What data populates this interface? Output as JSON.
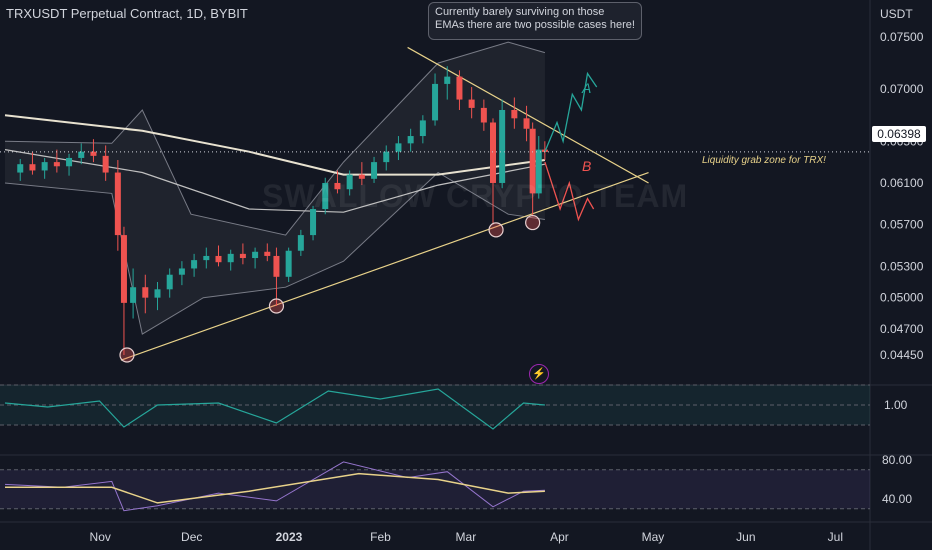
{
  "header": {
    "symbol_title": "TRXUSDT Perpetual Contract, 1D, BYBIT",
    "currency": "USDT",
    "last_price": "0.06398",
    "callout_text": "Currently barely surviving on those EMAs there are two possible cases here!",
    "watermark": "SWALLOW CRYPTO TEAM",
    "liquidity_label": "Liquidity grab zone for TRX!",
    "case_a": "A",
    "case_b": "B",
    "flash_icon": "lightning-icon"
  },
  "chart_data": [
    {
      "type": "candlestick",
      "title": "TRXUSDT Perpetual Contract, 1D, BYBIT",
      "x_ticks": [
        "Nov",
        "Dec",
        "2023",
        "Feb",
        "Mar",
        "Apr",
        "May",
        "Jun",
        "Jul"
      ],
      "y_ticks": [
        "0.07500",
        "0.07000",
        "0.06500",
        "0.06100",
        "0.05700",
        "0.05300",
        "0.05000",
        "0.04700",
        "0.04450"
      ],
      "ylim": [
        0.0425,
        0.077
      ],
      "last_price": 0.06398,
      "colors": {
        "up": "#26a69a",
        "down": "#ef5350",
        "ema_long": "#e8e2d0",
        "ema_mid": "#c0c0c0",
        "bollinger": "#787b86",
        "trendline": "#e8d28a"
      },
      "candles": [
        {
          "d": "2022-10-06",
          "o": 0.062,
          "h": 0.0633,
          "l": 0.0612,
          "c": 0.0628
        },
        {
          "d": "2022-10-10",
          "o": 0.0628,
          "h": 0.064,
          "l": 0.0618,
          "c": 0.0622
        },
        {
          "d": "2022-10-14",
          "o": 0.0622,
          "h": 0.0634,
          "l": 0.0614,
          "c": 0.063
        },
        {
          "d": "2022-10-18",
          "o": 0.063,
          "h": 0.0642,
          "l": 0.062,
          "c": 0.0626
        },
        {
          "d": "2022-10-22",
          "o": 0.0626,
          "h": 0.0638,
          "l": 0.0617,
          "c": 0.0634
        },
        {
          "d": "2022-10-26",
          "o": 0.0634,
          "h": 0.0648,
          "l": 0.0628,
          "c": 0.064
        },
        {
          "d": "2022-10-30",
          "o": 0.064,
          "h": 0.0652,
          "l": 0.063,
          "c": 0.0636
        },
        {
          "d": "2022-11-03",
          "o": 0.0636,
          "h": 0.0646,
          "l": 0.0612,
          "c": 0.062
        },
        {
          "d": "2022-11-07",
          "o": 0.062,
          "h": 0.0632,
          "l": 0.0545,
          "c": 0.056
        },
        {
          "d": "2022-11-09",
          "o": 0.056,
          "h": 0.0568,
          "l": 0.0445,
          "c": 0.0495
        },
        {
          "d": "2022-11-12",
          "o": 0.0495,
          "h": 0.0528,
          "l": 0.048,
          "c": 0.051
        },
        {
          "d": "2022-11-16",
          "o": 0.051,
          "h": 0.0522,
          "l": 0.0485,
          "c": 0.05
        },
        {
          "d": "2022-11-20",
          "o": 0.05,
          "h": 0.0515,
          "l": 0.0488,
          "c": 0.0508
        },
        {
          "d": "2022-11-24",
          "o": 0.0508,
          "h": 0.0528,
          "l": 0.05,
          "c": 0.0522
        },
        {
          "d": "2022-11-28",
          "o": 0.0522,
          "h": 0.0535,
          "l": 0.0512,
          "c": 0.0528
        },
        {
          "d": "2022-12-02",
          "o": 0.0528,
          "h": 0.0542,
          "l": 0.052,
          "c": 0.0536
        },
        {
          "d": "2022-12-06",
          "o": 0.0536,
          "h": 0.0548,
          "l": 0.0528,
          "c": 0.054
        },
        {
          "d": "2022-12-10",
          "o": 0.054,
          "h": 0.055,
          "l": 0.053,
          "c": 0.0534
        },
        {
          "d": "2022-12-14",
          "o": 0.0534,
          "h": 0.0546,
          "l": 0.0526,
          "c": 0.0542
        },
        {
          "d": "2022-12-18",
          "o": 0.0542,
          "h": 0.0552,
          "l": 0.0532,
          "c": 0.0538
        },
        {
          "d": "2022-12-22",
          "o": 0.0538,
          "h": 0.0548,
          "l": 0.0528,
          "c": 0.0544
        },
        {
          "d": "2022-12-26",
          "o": 0.0544,
          "h": 0.0552,
          "l": 0.0535,
          "c": 0.054
        },
        {
          "d": "2022-12-29",
          "o": 0.054,
          "h": 0.0548,
          "l": 0.0492,
          "c": 0.052
        },
        {
          "d": "2023-01-02",
          "o": 0.052,
          "h": 0.0548,
          "l": 0.0515,
          "c": 0.0545
        },
        {
          "d": "2023-01-06",
          "o": 0.0545,
          "h": 0.0565,
          "l": 0.054,
          "c": 0.056
        },
        {
          "d": "2023-01-10",
          "o": 0.056,
          "h": 0.0588,
          "l": 0.0555,
          "c": 0.0585
        },
        {
          "d": "2023-01-14",
          "o": 0.0585,
          "h": 0.0615,
          "l": 0.058,
          "c": 0.061
        },
        {
          "d": "2023-01-18",
          "o": 0.061,
          "h": 0.0622,
          "l": 0.06,
          "c": 0.0604
        },
        {
          "d": "2023-01-22",
          "o": 0.0604,
          "h": 0.0622,
          "l": 0.0598,
          "c": 0.0618
        },
        {
          "d": "2023-01-26",
          "o": 0.0618,
          "h": 0.063,
          "l": 0.0608,
          "c": 0.0614
        },
        {
          "d": "2023-01-30",
          "o": 0.0614,
          "h": 0.0635,
          "l": 0.061,
          "c": 0.063
        },
        {
          "d": "2023-02-03",
          "o": 0.063,
          "h": 0.0646,
          "l": 0.0622,
          "c": 0.064
        },
        {
          "d": "2023-02-07",
          "o": 0.064,
          "h": 0.0655,
          "l": 0.0632,
          "c": 0.0648
        },
        {
          "d": "2023-02-11",
          "o": 0.0648,
          "h": 0.0662,
          "l": 0.064,
          "c": 0.0655
        },
        {
          "d": "2023-02-15",
          "o": 0.0655,
          "h": 0.0675,
          "l": 0.0648,
          "c": 0.067
        },
        {
          "d": "2023-02-19",
          "o": 0.067,
          "h": 0.0715,
          "l": 0.0665,
          "c": 0.0705
        },
        {
          "d": "2023-02-23",
          "o": 0.0705,
          "h": 0.0722,
          "l": 0.069,
          "c": 0.0712
        },
        {
          "d": "2023-02-27",
          "o": 0.0712,
          "h": 0.0718,
          "l": 0.068,
          "c": 0.069
        },
        {
          "d": "2023-03-03",
          "o": 0.069,
          "h": 0.0702,
          "l": 0.0672,
          "c": 0.0682
        },
        {
          "d": "2023-03-07",
          "o": 0.0682,
          "h": 0.069,
          "l": 0.066,
          "c": 0.0668
        },
        {
          "d": "2023-03-10",
          "o": 0.0668,
          "h": 0.0672,
          "l": 0.057,
          "c": 0.061
        },
        {
          "d": "2023-03-13",
          "o": 0.061,
          "h": 0.069,
          "l": 0.0605,
          "c": 0.068
        },
        {
          "d": "2023-03-17",
          "o": 0.068,
          "h": 0.0692,
          "l": 0.0662,
          "c": 0.0672
        },
        {
          "d": "2023-03-21",
          "o": 0.0672,
          "h": 0.0684,
          "l": 0.065,
          "c": 0.0662
        },
        {
          "d": "2023-03-23",
          "o": 0.0662,
          "h": 0.0668,
          "l": 0.0578,
          "c": 0.06
        },
        {
          "d": "2023-03-25",
          "o": 0.06,
          "h": 0.0655,
          "l": 0.0595,
          "c": 0.0642
        },
        {
          "d": "2023-03-27",
          "o": 0.0642,
          "h": 0.065,
          "l": 0.0632,
          "c": 0.06398
        }
      ],
      "ema_long": [
        {
          "d": "2022-10-01",
          "v": 0.0675
        },
        {
          "d": "2022-11-15",
          "v": 0.066
        },
        {
          "d": "2022-12-20",
          "v": 0.064
        },
        {
          "d": "2023-01-20",
          "v": 0.0618
        },
        {
          "d": "2023-02-20",
          "v": 0.0618
        },
        {
          "d": "2023-03-27",
          "v": 0.0632
        }
      ],
      "ema_mid": [
        {
          "d": "2022-10-01",
          "v": 0.0642
        },
        {
          "d": "2022-11-15",
          "v": 0.062
        },
        {
          "d": "2022-12-20",
          "v": 0.0585
        },
        {
          "d": "2023-01-20",
          "v": 0.0582
        },
        {
          "d": "2023-02-20",
          "v": 0.0608
        },
        {
          "d": "2023-03-27",
          "v": 0.0628
        }
      ],
      "bollinger_upper": [
        {
          "d": "2022-10-01",
          "v": 0.065
        },
        {
          "d": "2022-11-05",
          "v": 0.0648
        },
        {
          "d": "2022-11-15",
          "v": 0.068
        },
        {
          "d": "2022-12-01",
          "v": 0.058
        },
        {
          "d": "2023-01-01",
          "v": 0.056
        },
        {
          "d": "2023-01-20",
          "v": 0.063
        },
        {
          "d": "2023-02-20",
          "v": 0.0725
        },
        {
          "d": "2023-03-15",
          "v": 0.0745
        },
        {
          "d": "2023-03-27",
          "v": 0.0735
        }
      ],
      "bollinger_lower": [
        {
          "d": "2022-10-01",
          "v": 0.061
        },
        {
          "d": "2022-11-05",
          "v": 0.06
        },
        {
          "d": "2022-11-15",
          "v": 0.0465
        },
        {
          "d": "2022-12-05",
          "v": 0.05
        },
        {
          "d": "2023-01-01",
          "v": 0.051
        },
        {
          "d": "2023-01-20",
          "v": 0.0535
        },
        {
          "d": "2023-02-20",
          "v": 0.062
        },
        {
          "d": "2023-03-15",
          "v": 0.058
        },
        {
          "d": "2023-03-27",
          "v": 0.0575
        }
      ],
      "trendlines": [
        {
          "from": {
            "d": "2022-11-08",
            "v": 0.044
          },
          "to": {
            "d": "2023-04-30",
            "v": 0.062
          }
        },
        {
          "from": {
            "d": "2023-02-10",
            "v": 0.074
          },
          "to": {
            "d": "2023-04-30",
            "v": 0.061
          }
        }
      ],
      "touch_points": [
        {
          "d": "2022-11-10",
          "v": 0.0445
        },
        {
          "d": "2022-12-29",
          "v": 0.0492
        },
        {
          "d": "2023-03-11",
          "v": 0.0565
        },
        {
          "d": "2023-03-23",
          "v": 0.0572
        }
      ],
      "scenario_a": [
        {
          "d": "2023-03-27",
          "v": 0.064
        },
        {
          "d": "2023-03-31",
          "v": 0.0668
        },
        {
          "d": "2023-04-02",
          "v": 0.065
        },
        {
          "d": "2023-04-05",
          "v": 0.0695
        },
        {
          "d": "2023-04-08",
          "v": 0.068
        },
        {
          "d": "2023-04-10",
          "v": 0.0715
        },
        {
          "d": "2023-04-13",
          "v": 0.0702
        }
      ],
      "scenario_b": [
        {
          "d": "2023-03-27",
          "v": 0.063
        },
        {
          "d": "2023-04-01",
          "v": 0.0585
        },
        {
          "d": "2023-04-04",
          "v": 0.061
        },
        {
          "d": "2023-04-07",
          "v": 0.0575
        },
        {
          "d": "2023-04-10",
          "v": 0.0595
        },
        {
          "d": "2023-04-12",
          "v": 0.0585
        }
      ]
    },
    {
      "type": "line",
      "title": "",
      "y_ticks": [
        "1.00"
      ],
      "ylim": [
        0.0,
        2.0
      ],
      "bands": [
        0.5,
        1.5
      ],
      "color": "#26a69a",
      "points": [
        {
          "d": "2022-10-01",
          "v": 1.05
        },
        {
          "d": "2022-10-15",
          "v": 0.95
        },
        {
          "d": "2022-11-01",
          "v": 1.1
        },
        {
          "d": "2022-11-09",
          "v": 0.45
        },
        {
          "d": "2022-11-20",
          "v": 1.0
        },
        {
          "d": "2022-12-10",
          "v": 1.05
        },
        {
          "d": "2022-12-29",
          "v": 0.55
        },
        {
          "d": "2023-01-15",
          "v": 1.35
        },
        {
          "d": "2023-02-01",
          "v": 1.15
        },
        {
          "d": "2023-02-20",
          "v": 1.4
        },
        {
          "d": "2023-03-10",
          "v": 0.4
        },
        {
          "d": "2023-03-20",
          "v": 1.05
        },
        {
          "d": "2023-03-27",
          "v": 1.0
        }
      ]
    },
    {
      "type": "line",
      "title": "",
      "y_ticks": [
        "80.00",
        "40.00"
      ],
      "ylim": [
        20,
        100
      ],
      "bands": [
        70,
        30
      ],
      "colors": {
        "rsi": "#9575cd",
        "rsi_ma": "#e8d28a"
      },
      "rsi": [
        {
          "d": "2022-10-01",
          "v": 55
        },
        {
          "d": "2022-10-20",
          "v": 52
        },
        {
          "d": "2022-11-05",
          "v": 58
        },
        {
          "d": "2022-11-09",
          "v": 28
        },
        {
          "d": "2022-11-20",
          "v": 33
        },
        {
          "d": "2022-12-10",
          "v": 46
        },
        {
          "d": "2022-12-29",
          "v": 38
        },
        {
          "d": "2023-01-20",
          "v": 78
        },
        {
          "d": "2023-02-10",
          "v": 62
        },
        {
          "d": "2023-02-23",
          "v": 68
        },
        {
          "d": "2023-03-10",
          "v": 32
        },
        {
          "d": "2023-03-20",
          "v": 48
        },
        {
          "d": "2023-03-27",
          "v": 49
        }
      ],
      "rsi_ma": [
        {
          "d": "2022-10-01",
          "v": 52
        },
        {
          "d": "2022-11-05",
          "v": 52
        },
        {
          "d": "2022-11-20",
          "v": 36
        },
        {
          "d": "2022-12-20",
          "v": 48
        },
        {
          "d": "2023-01-25",
          "v": 66
        },
        {
          "d": "2023-02-20",
          "v": 60
        },
        {
          "d": "2023-03-15",
          "v": 46
        },
        {
          "d": "2023-03-27",
          "v": 48
        }
      ]
    }
  ]
}
